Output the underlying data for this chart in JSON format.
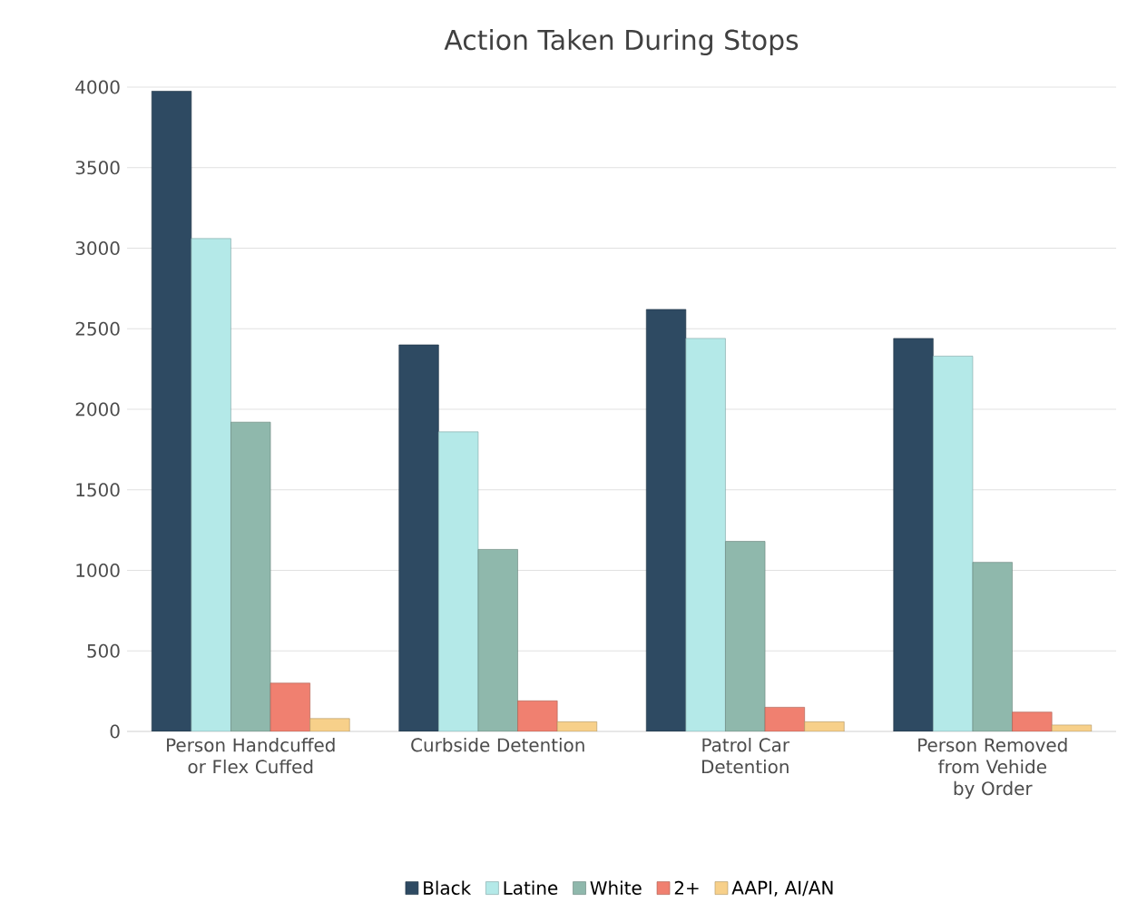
{
  "chart_data": {
    "type": "bar",
    "title": "Action Taken During Stops",
    "categories": [
      "Person Handcuffed or Flex Cuffed",
      "Curbside Detention",
      "Patrol Car Detention",
      "Person Removed from Vehide by Order"
    ],
    "series": [
      {
        "name": "Black",
        "color": "#2e4a62",
        "values": [
          3975,
          2400,
          2620,
          2440
        ]
      },
      {
        "name": "Latine",
        "color": "#b4e9e8",
        "values": [
          3060,
          1860,
          2440,
          2330
        ]
      },
      {
        "name": "White",
        "color": "#8fb8ac",
        "values": [
          1920,
          1130,
          1180,
          1050
        ]
      },
      {
        "name": "2+",
        "color": "#f08070",
        "values": [
          300,
          190,
          150,
          120
        ]
      },
      {
        "name": "AAPI, AI/AN",
        "color": "#f7d08a",
        "values": [
          80,
          60,
          60,
          40
        ]
      }
    ],
    "ylim": [
      0,
      4000
    ],
    "yticks": [
      0,
      500,
      1000,
      1500,
      2000,
      2500,
      3000,
      3500,
      4000
    ],
    "grid": "y",
    "legend": "bottom"
  }
}
